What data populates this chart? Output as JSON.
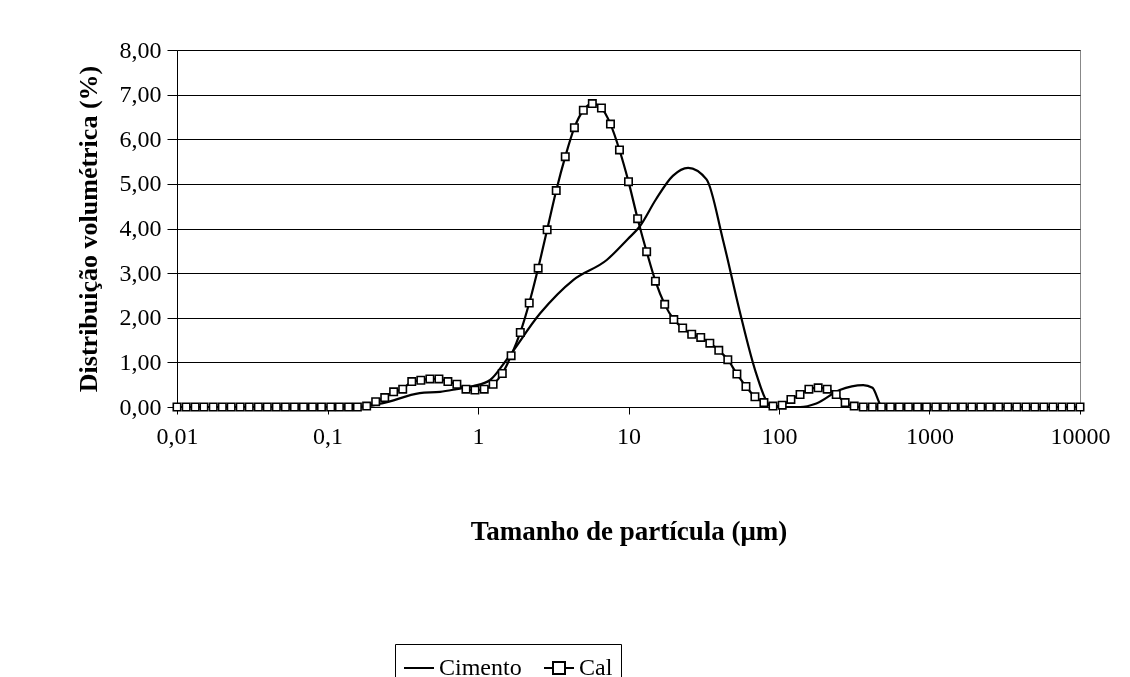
{
  "chart_data": {
    "type": "line",
    "xlabel": "Tamanho de partícula (μm)",
    "ylabel": "Distribuição volumétrica (%)",
    "log": "x",
    "grid": "y",
    "legend": "bottom",
    "line_style": "solid",
    "xlim": [
      0.01,
      10000
    ],
    "xticks": [
      {
        "value": 0.01,
        "label": "0,01"
      },
      {
        "value": 0.1,
        "label": "0,1"
      },
      1,
      10,
      100,
      1000,
      10000
    ],
    "ylim": [
      0,
      8
    ],
    "yticks": [
      {
        "value": 0,
        "label": "0,00"
      },
      {
        "value": 1,
        "label": "1,00"
      },
      {
        "value": 2,
        "label": "2,00"
      },
      {
        "value": 3,
        "label": "3,00"
      },
      {
        "value": 4,
        "label": "4,00"
      },
      {
        "value": 5,
        "label": "5,00"
      },
      {
        "value": 6,
        "label": "6,00"
      },
      {
        "value": 7,
        "label": "7,00"
      },
      {
        "value": 8,
        "label": "8,00"
      }
    ],
    "series": [
      {
        "name": "Cimento",
        "color": "#000000",
        "marker": "none",
        "x": [
          0.01,
          0.16,
          0.23,
          0.41,
          0.56,
          0.72,
          0.93,
          1.2,
          1.55,
          2.59,
          4.31,
          7.2,
          9.8,
          11.9,
          15.2,
          19.7,
          24.9,
          33,
          42.4,
          54.5,
          70.4,
          86.5,
          95,
          138,
          177,
          253,
          363,
          418,
          474,
          490,
          10000
        ],
        "values": [
          0,
          0,
          0.08,
          0.31,
          0.34,
          0.4,
          0.47,
          0.6,
          1.06,
          2.1,
          2.85,
          3.3,
          3.75,
          4.05,
          4.65,
          5.18,
          5.36,
          5.1,
          3.75,
          2.18,
          0.76,
          0.04,
          0,
          0,
          0.08,
          0.38,
          0.49,
          0.43,
          0.04,
          0,
          0
        ]
      },
      {
        "name": "Cal",
        "color": "#000000",
        "marker": "square",
        "x": [
          0.01,
          0.0115,
          0.0132,
          0.0151,
          0.0174,
          0.02,
          0.0229,
          0.0263,
          0.0302,
          0.0347,
          0.0398,
          0.0457,
          0.0525,
          0.0603,
          0.0692,
          0.0794,
          0.0912,
          0.105,
          0.12,
          0.138,
          0.158,
          0.182,
          0.209,
          0.24,
          0.275,
          0.316,
          0.363,
          0.417,
          0.479,
          0.55,
          0.631,
          0.724,
          0.832,
          0.955,
          1.1,
          1.26,
          1.45,
          1.66,
          1.91,
          2.19,
          2.51,
          2.88,
          3.31,
          3.8,
          4.37,
          5.01,
          5.75,
          6.61,
          7.59,
          8.71,
          10,
          11.5,
          13.2,
          15.1,
          17.4,
          20,
          22.9,
          26.3,
          30.2,
          34.7,
          39.8,
          45.7,
          52.5,
          60.3,
          69.2,
          79.4,
          91.2,
          105,
          120,
          138,
          158,
          182,
          209,
          240,
          275,
          316,
          363,
          417,
          479,
          550,
          631,
          724,
          832,
          955,
          1100,
          1260,
          1450,
          1660,
          1910,
          2190,
          2510,
          2880,
          3310,
          3800,
          4370,
          5010,
          5750,
          6610,
          7590,
          8710,
          10000
        ],
        "values": [
          0,
          0,
          0,
          0,
          0,
          0,
          0,
          0,
          0,
          0,
          0,
          0,
          0,
          0,
          0,
          0,
          0,
          0,
          0,
          0,
          0,
          0.02,
          0.12,
          0.21,
          0.34,
          0.4,
          0.57,
          0.6,
          0.63,
          0.63,
          0.57,
          0.51,
          0.4,
          0.38,
          0.4,
          0.51,
          0.75,
          1.15,
          1.67,
          2.33,
          3.11,
          3.97,
          4.85,
          5.61,
          6.26,
          6.65,
          6.8,
          6.7,
          6.34,
          5.76,
          5.05,
          4.22,
          3.48,
          2.82,
          2.3,
          1.96,
          1.77,
          1.63,
          1.56,
          1.43,
          1.27,
          1.06,
          0.74,
          0.46,
          0.23,
          0.1,
          0.02,
          0.04,
          0.17,
          0.28,
          0.4,
          0.43,
          0.4,
          0.28,
          0.1,
          0.02,
          0,
          0,
          0,
          0,
          0,
          0,
          0,
          0,
          0,
          0,
          0,
          0,
          0,
          0,
          0,
          0,
          0,
          0,
          0,
          0,
          0,
          0,
          0,
          0,
          0
        ]
      }
    ]
  }
}
